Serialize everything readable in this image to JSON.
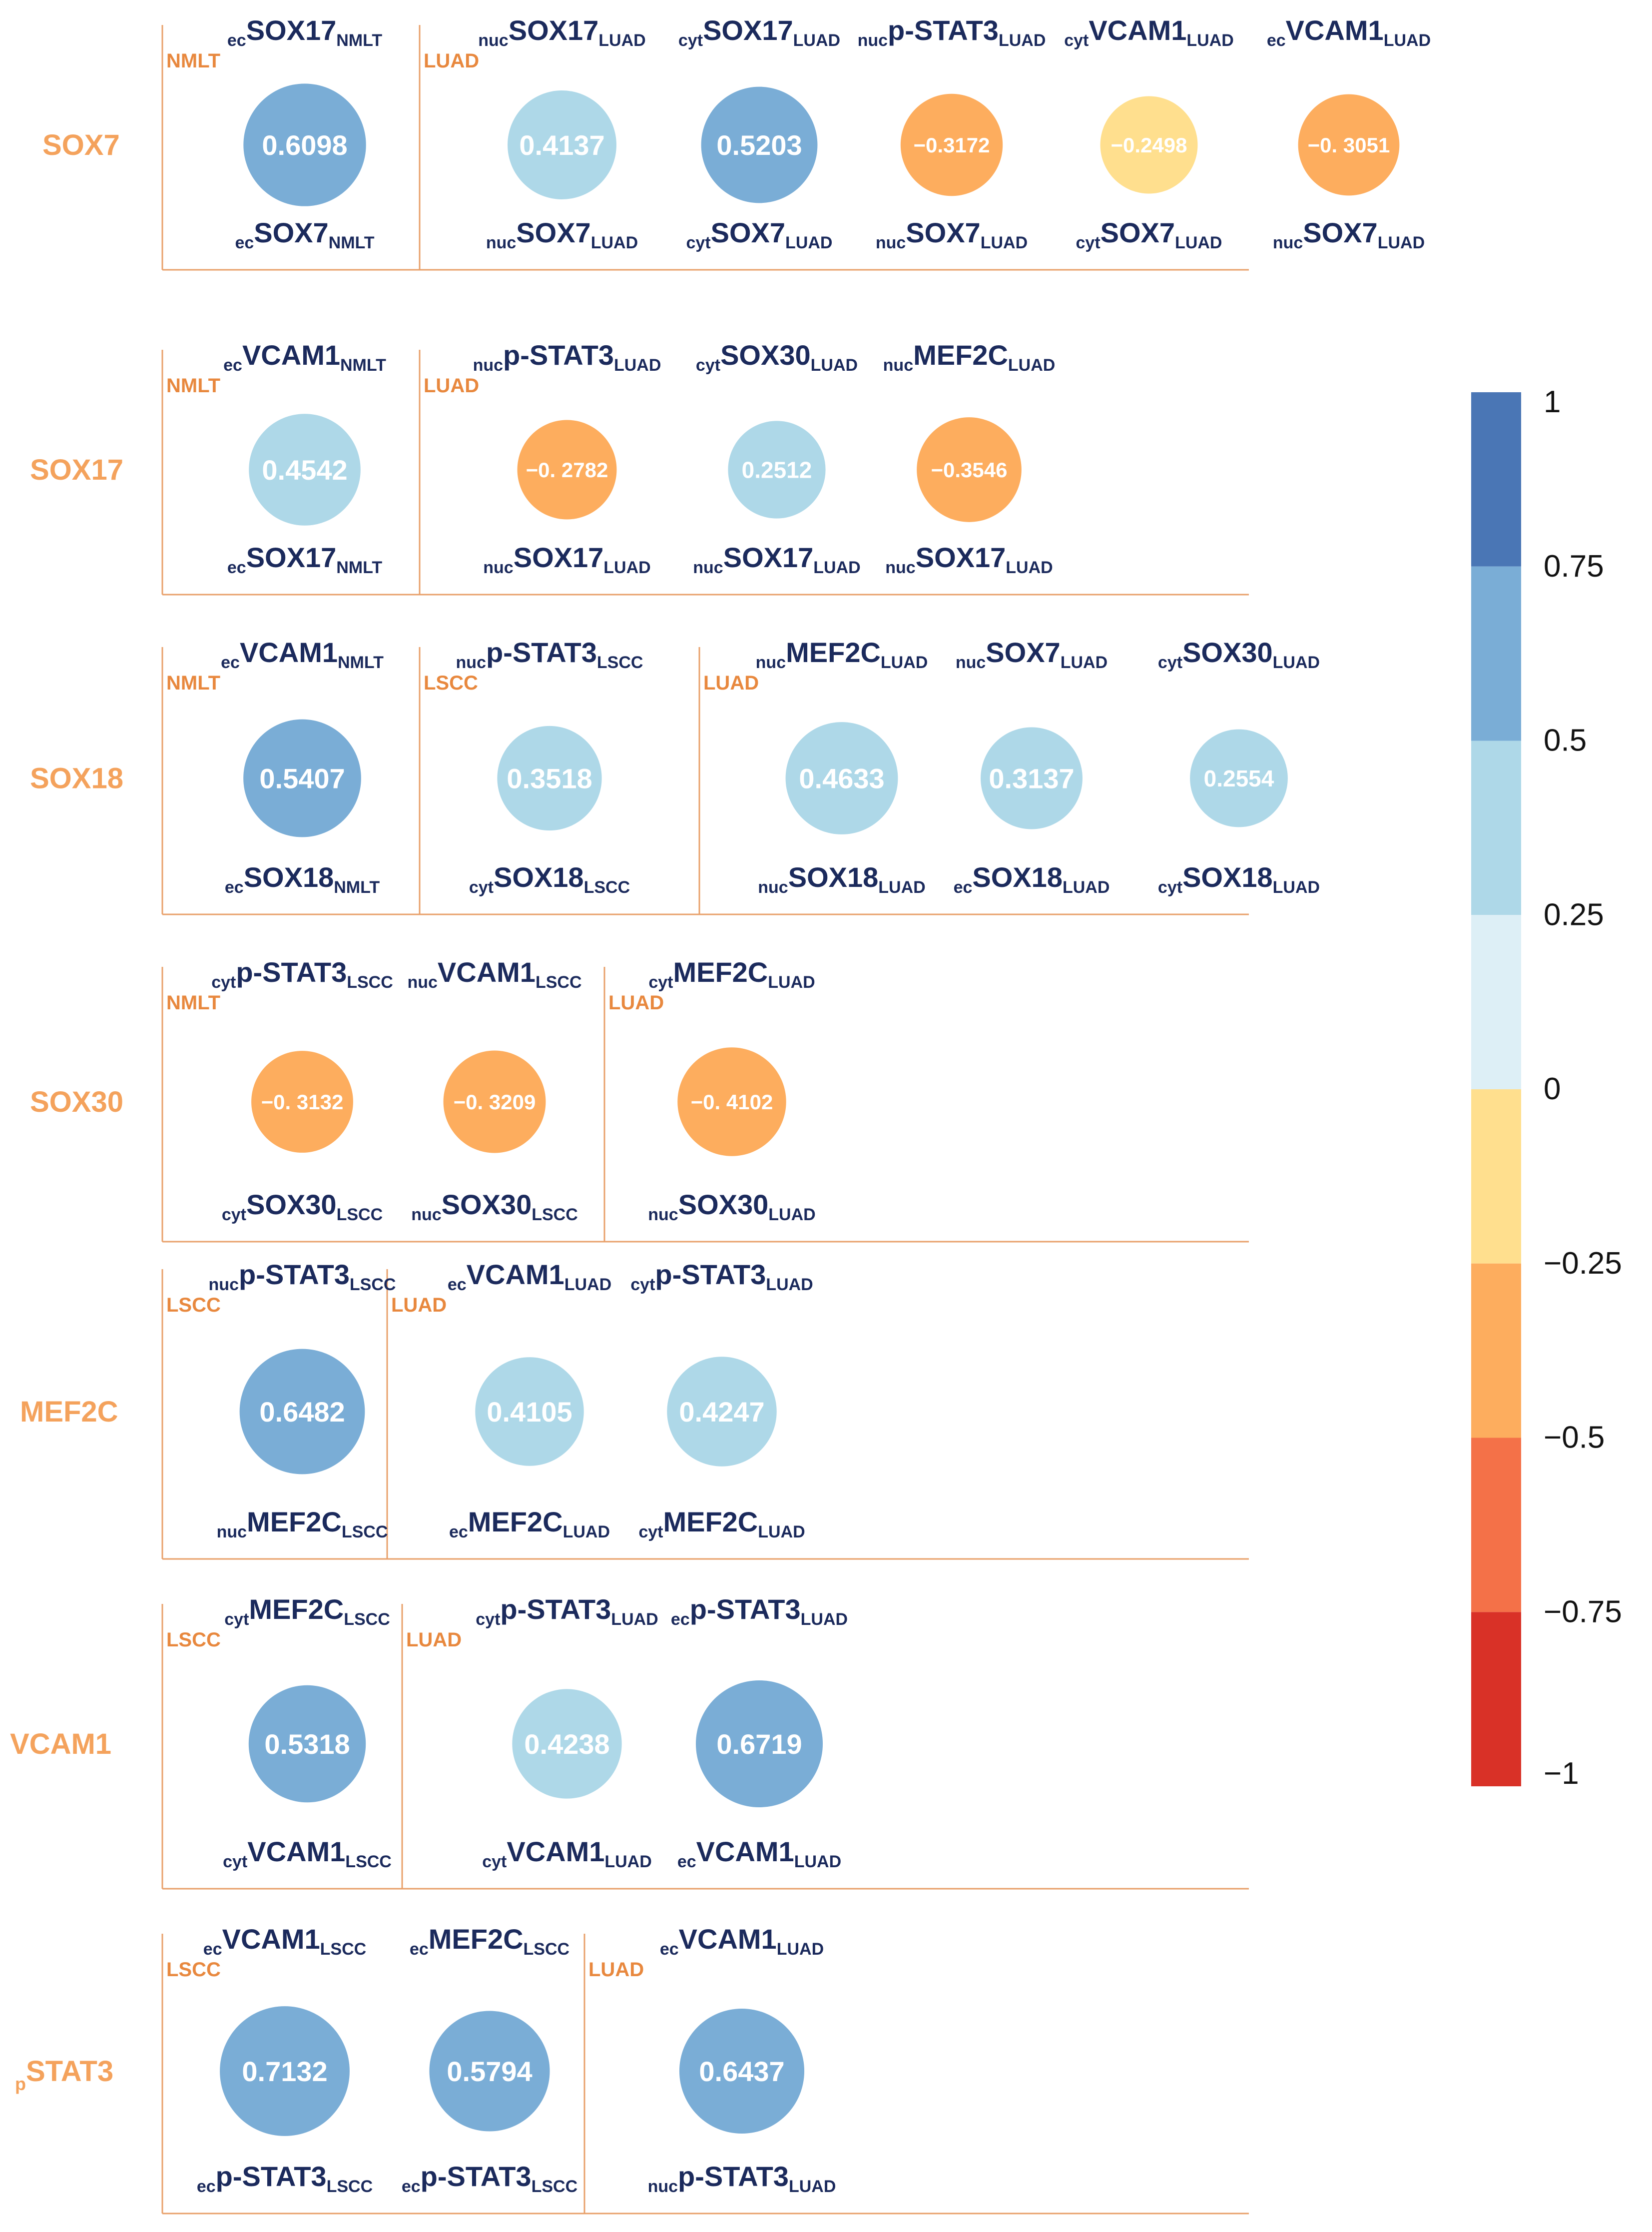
{
  "colors": {
    "orange_label": "#f4a25c",
    "group_label": "#e8883e",
    "dark_blue_text": "#1b2a5c",
    "panel_line": "#e8a06a"
  },
  "chart_data": {
    "type": "correlation-bubble-panels",
    "rows": [
      {
        "label_main": "SOX7",
        "label_prefix": "",
        "groups": [
          {
            "name": "NMLT",
            "cells": [
              {
                "top": {
                  "pre": "ec",
                  "main": "SOX17",
                  "sub": "NMLT"
                },
                "bottom": {
                  "pre": "ec",
                  "main": "SOX7",
                  "sub": "NMLT"
                },
                "label": "0.6098",
                "value": 0.6098
              }
            ]
          },
          {
            "name": "LUAD",
            "cells": [
              {
                "top": {
                  "pre": "nuc",
                  "main": "SOX17",
                  "sub": "LUAD"
                },
                "bottom": {
                  "pre": "nuc",
                  "main": "SOX7",
                  "sub": "LUAD"
                },
                "label": "0.4137",
                "value": 0.4137
              },
              {
                "top": {
                  "pre": "cyt",
                  "main": "SOX17",
                  "sub": "LUAD"
                },
                "bottom": {
                  "pre": "cyt",
                  "main": "SOX7",
                  "sub": "LUAD"
                },
                "label": "0.5203",
                "value": 0.5203
              },
              {
                "top": {
                  "pre": "nuc",
                  "main": "p-STAT3",
                  "sub": "LUAD"
                },
                "bottom": {
                  "pre": "nuc",
                  "main": "SOX7",
                  "sub": "LUAD"
                },
                "label": "−0.3172",
                "value": -0.3172
              },
              {
                "top": {
                  "pre": "cyt",
                  "main": "VCAM1",
                  "sub": "LUAD"
                },
                "bottom": {
                  "pre": "cyt",
                  "main": "SOX7",
                  "sub": "LUAD"
                },
                "label": "−0.2498",
                "value": -0.2498
              },
              {
                "top": {
                  "pre": "ec",
                  "main": "VCAM1",
                  "sub": "LUAD"
                },
                "bottom": {
                  "pre": "nuc",
                  "main": "SOX7",
                  "sub": "LUAD"
                },
                "label": "−0. 3051",
                "value": -0.3051
              }
            ]
          }
        ]
      },
      {
        "label_main": "SOX17",
        "label_prefix": "",
        "groups": [
          {
            "name": "NMLT",
            "cells": [
              {
                "top": {
                  "pre": "ec",
                  "main": "VCAM1",
                  "sub": "NMLT"
                },
                "bottom": {
                  "pre": "ec",
                  "main": "SOX17",
                  "sub": "NMLT"
                },
                "label": "0.4542",
                "value": 0.4542
              }
            ]
          },
          {
            "name": "LUAD",
            "cells": [
              {
                "top": {
                  "pre": "nuc",
                  "main": "p-STAT3",
                  "sub": "LUAD"
                },
                "bottom": {
                  "pre": "nuc",
                  "main": "SOX17",
                  "sub": "LUAD"
                },
                "label": "−0. 2782",
                "value": -0.2782
              },
              {
                "top": {
                  "pre": "cyt",
                  "main": "SOX30",
                  "sub": "LUAD"
                },
                "bottom": {
                  "pre": "nuc",
                  "main": "SOX17",
                  "sub": "LUAD"
                },
                "label": "0.2512",
                "value": 0.2512
              },
              {
                "top": {
                  "pre": "nuc",
                  "main": "MEF2C",
                  "sub": "LUAD"
                },
                "bottom": {
                  "pre": "nuc",
                  "main": "SOX17",
                  "sub": "LUAD"
                },
                "label": "−0.3546",
                "value": -0.3546
              }
            ]
          }
        ]
      },
      {
        "label_main": "SOX18",
        "label_prefix": "",
        "groups": [
          {
            "name": "NMLT",
            "cells": [
              {
                "top": {
                  "pre": "ec",
                  "main": "VCAM1",
                  "sub": "NMLT"
                },
                "bottom": {
                  "pre": "ec",
                  "main": "SOX18",
                  "sub": "NMLT"
                },
                "label": "0.5407",
                "value": 0.5407
              }
            ]
          },
          {
            "name": "LSCC",
            "cells": [
              {
                "top": {
                  "pre": "nuc",
                  "main": "p-STAT3",
                  "sub": "LSCC"
                },
                "bottom": {
                  "pre": "cyt",
                  "main": "SOX18",
                  "sub": "LSCC"
                },
                "label": "0.3518",
                "value": 0.3518
              }
            ]
          },
          {
            "name": "LUAD",
            "cells": [
              {
                "top": {
                  "pre": "nuc",
                  "main": "MEF2C",
                  "sub": "LUAD"
                },
                "bottom": {
                  "pre": "nuc",
                  "main": "SOX18",
                  "sub": "LUAD"
                },
                "label": "0.4633",
                "value": 0.4633
              },
              {
                "top": {
                  "pre": "nuc",
                  "main": "SOX7",
                  "sub": "LUAD"
                },
                "bottom": {
                  "pre": "ec",
                  "main": "SOX18",
                  "sub": "LUAD"
                },
                "label": "0.3137",
                "value": 0.3137
              },
              {
                "top": {
                  "pre": "cyt",
                  "main": "SOX30",
                  "sub": "LUAD"
                },
                "bottom": {
                  "pre": "cyt",
                  "main": "SOX18",
                  "sub": "LUAD"
                },
                "label": "0.2554",
                "value": 0.2554
              }
            ]
          }
        ]
      },
      {
        "label_main": "SOX30",
        "label_prefix": "",
        "groups": [
          {
            "name": "NMLT",
            "cells": [
              {
                "top": {
                  "pre": "cyt",
                  "main": "p-STAT3",
                  "sub": "LSCC"
                },
                "bottom": {
                  "pre": "cyt",
                  "main": "SOX30",
                  "sub": "LSCC"
                },
                "label": "−0. 3132",
                "value": -0.3132
              },
              {
                "top": {
                  "pre": "nuc",
                  "main": "VCAM1",
                  "sub": "LSCC"
                },
                "bottom": {
                  "pre": "nuc",
                  "main": "SOX30",
                  "sub": "LSCC"
                },
                "label": "−0. 3209",
                "value": -0.3209
              }
            ]
          },
          {
            "name": "LUAD",
            "cells": [
              {
                "top": {
                  "pre": "cyt",
                  "main": "MEF2C",
                  "sub": "LUAD"
                },
                "bottom": {
                  "pre": "nuc",
                  "main": "SOX30",
                  "sub": "LUAD"
                },
                "label": "−0. 4102",
                "value": -0.4102
              }
            ]
          }
        ]
      },
      {
        "label_main": "MEF2C",
        "label_prefix": "",
        "groups": [
          {
            "name": "LSCC",
            "cells": [
              {
                "top": {
                  "pre": "nuc",
                  "main": "p-STAT3",
                  "sub": "LSCC"
                },
                "bottom": {
                  "pre": "nuc",
                  "main": "MEF2C",
                  "sub": "LSCC"
                },
                "label": "0.6482",
                "value": 0.6482
              }
            ]
          },
          {
            "name": "LUAD",
            "cells": [
              {
                "top": {
                  "pre": "ec",
                  "main": "VCAM1",
                  "sub": "LUAD"
                },
                "bottom": {
                  "pre": "ec",
                  "main": "MEF2C",
                  "sub": "LUAD"
                },
                "label": "0.4105",
                "value": 0.4105
              },
              {
                "top": {
                  "pre": "cyt",
                  "main": "p-STAT3",
                  "sub": "LUAD"
                },
                "bottom": {
                  "pre": "cyt",
                  "main": "MEF2C",
                  "sub": "LUAD"
                },
                "label": "0.4247",
                "value": 0.4247
              }
            ]
          }
        ]
      },
      {
        "label_main": "VCAM1",
        "label_prefix": "",
        "groups": [
          {
            "name": "LSCC",
            "cells": [
              {
                "top": {
                  "pre": "cyt",
                  "main": "MEF2C",
                  "sub": "LSCC"
                },
                "bottom": {
                  "pre": "cyt",
                  "main": "VCAM1",
                  "sub": "LSCC"
                },
                "label": "0.5318",
                "value": 0.5318
              }
            ]
          },
          {
            "name": "LUAD",
            "cells": [
              {
                "top": {
                  "pre": "cyt",
                  "main": "p-STAT3",
                  "sub": "LUAD"
                },
                "bottom": {
                  "pre": "cyt",
                  "main": "VCAM1",
                  "sub": "LUAD"
                },
                "label": "0.4238",
                "value": 0.4238
              },
              {
                "top": {
                  "pre": "ec",
                  "main": "p-STAT3",
                  "sub": "LUAD"
                },
                "bottom": {
                  "pre": "ec",
                  "main": "VCAM1",
                  "sub": "LUAD"
                },
                "label": "0.6719",
                "value": 0.6719
              }
            ]
          }
        ]
      },
      {
        "label_main": "STAT3",
        "label_prefix": "p",
        "groups": [
          {
            "name": "LSCC",
            "cells": [
              {
                "top": {
                  "pre": "ec",
                  "main": "VCAM1",
                  "sub": "LSCC"
                },
                "bottom": {
                  "pre": "ec",
                  "main": "p-STAT3",
                  "sub": "LSCC"
                },
                "label": "0.7132",
                "value": 0.7132
              },
              {
                "top": {
                  "pre": "ec",
                  "main": "MEF2C",
                  "sub": "LSCC"
                },
                "bottom": {
                  "pre": "ec",
                  "main": "p-STAT3",
                  "sub": "LSCC"
                },
                "label": "0.5794",
                "value": 0.5794
              }
            ]
          },
          {
            "name": "LUAD",
            "cells": [
              {
                "top": {
                  "pre": "ec",
                  "main": "VCAM1",
                  "sub": "LUAD"
                },
                "bottom": {
                  "pre": "nuc",
                  "main": "p-STAT3",
                  "sub": "LUAD"
                },
                "label": "0.6437",
                "value": 0.6437
              }
            ]
          }
        ]
      }
    ],
    "colorbar": {
      "range": [
        -1,
        1
      ],
      "bins": [
        {
          "from": 0.75,
          "to": 1,
          "color": "#4a76b5"
        },
        {
          "from": 0.5,
          "to": 0.75,
          "color": "#7aadd6"
        },
        {
          "from": 0.25,
          "to": 0.5,
          "color": "#aed8e8"
        },
        {
          "from": 0,
          "to": 0.25,
          "color": "#ddeff6"
        },
        {
          "from": -0.25,
          "to": 0,
          "color": "#ffdf8e"
        },
        {
          "from": -0.5,
          "to": -0.25,
          "color": "#fdad5e"
        },
        {
          "from": -0.75,
          "to": -0.5,
          "color": "#f47148"
        },
        {
          "from": -1,
          "to": -0.75,
          "color": "#d93127"
        }
      ],
      "ticks": [
        {
          "value": 1,
          "label": "1"
        },
        {
          "value": 0.75,
          "label": "0.75"
        },
        {
          "value": 0.5,
          "label": "0.5"
        },
        {
          "value": 0.25,
          "label": "0.25"
        },
        {
          "value": 0,
          "label": "0"
        },
        {
          "value": -0.25,
          "label": "−0.25"
        },
        {
          "value": -0.5,
          "label": "−0.5"
        },
        {
          "value": -0.75,
          "label": "−0.75"
        },
        {
          "value": -1,
          "label": "−1"
        }
      ]
    }
  }
}
